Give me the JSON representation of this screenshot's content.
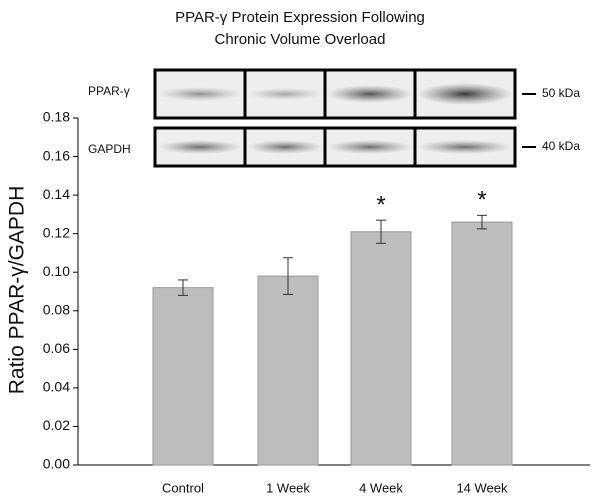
{
  "chart_data": {
    "type": "bar",
    "title": [
      "PPAR-γ Protein Expression Following",
      "Chronic Volume Overload"
    ],
    "y_label": "Ratio PPAR-γ/GAPDH",
    "categories": [
      "Control",
      "1 Week",
      "4 Week",
      "14 Week"
    ],
    "values": [
      0.092,
      0.098,
      0.121,
      0.126
    ],
    "errors": [
      0.004,
      0.0095,
      0.006,
      0.0035
    ],
    "color": "#bdbdbd",
    "ylim": [
      0,
      0.18
    ],
    "yticks": [
      {
        "value": 0,
        "label": "0.00"
      },
      {
        "value": 0.02,
        "label": "0.02"
      },
      {
        "value": 0.04,
        "label": "0.04"
      },
      {
        "value": 0.06,
        "label": "0.06"
      },
      {
        "value": 0.08,
        "label": "0.08"
      },
      {
        "value": 0.1,
        "label": "0.10"
      },
      {
        "value": 0.12,
        "label": "0.12"
      },
      {
        "value": 0.14,
        "label": "0.14"
      },
      {
        "value": 0.16,
        "label": "0.16"
      },
      {
        "value": 0.18,
        "label": "0.18"
      }
    ],
    "annotations": [
      {
        "label": "*",
        "category": "4 Week"
      },
      {
        "label": "*",
        "category": "14 Week"
      }
    ]
  },
  "blot": {
    "rows": [
      {
        "label": "PPAR-γ",
        "marker": "50 kDa"
      },
      {
        "label": "GAPDH",
        "marker": "40 kDa"
      }
    ]
  }
}
